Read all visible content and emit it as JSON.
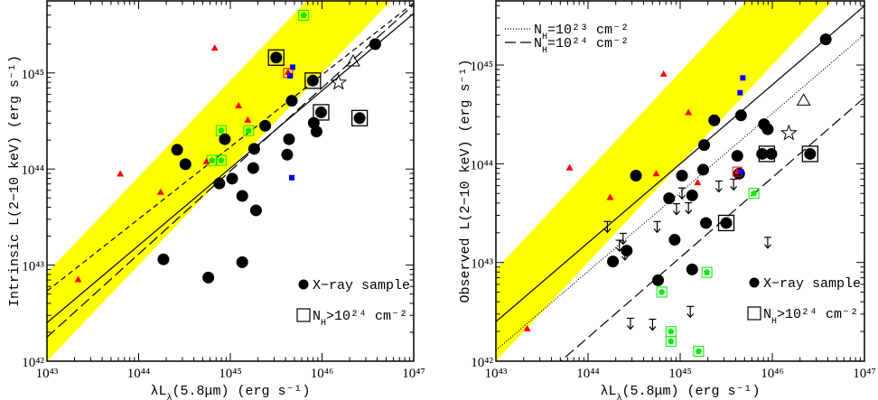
{
  "chart_data": [
    {
      "type": "scatter",
      "panel": "left",
      "xscale": "log",
      "yscale": "log",
      "xlim_log10": [
        43,
        47
      ],
      "ylim_log10": [
        42,
        45.75
      ],
      "xticks": [
        "10⁴³",
        "10⁴⁴",
        "10⁴⁵",
        "10⁴⁶",
        "10⁴⁷"
      ],
      "yticks": [
        "10⁴²",
        "10⁴³",
        "10⁴⁴",
        "10⁴⁵"
      ],
      "xlabel": {
        "pre": "λL",
        "sub": "λ",
        "post": "(5.8μm) (erg s⁻¹)"
      },
      "ylabel": "Intrinsic L(2−10 keV) (erg s⁻¹)",
      "band": {
        "color": "#ffff00",
        "lower": {
          "slope": 1.0,
          "intercept": -1.0
        },
        "upper": {
          "slope": 1.0,
          "intercept": -0.08
        }
      },
      "lines": [
        {
          "style": "solid",
          "slope": 0.805,
          "y_at_43": 42.4
        },
        {
          "style": "long-dash",
          "slope": 0.865,
          "y_at_43": 42.25
        },
        {
          "style": "short-dash",
          "slope": 0.75,
          "y_at_43": 42.73
        }
      ],
      "series": [
        {
          "marker": "black-circle",
          "color": "#000000",
          "points_log10": [
            [
              46.58,
              45.3
            ],
            [
              45.5,
              45.16
            ],
            [
              45.9,
              44.92
            ],
            [
              45.67,
              44.71
            ],
            [
              45.99,
              44.59
            ],
            [
              46.41,
              44.53
            ],
            [
              45.91,
              44.48
            ],
            [
              45.94,
              44.39
            ],
            [
              45.38,
              44.45
            ],
            [
              44.94,
              44.31
            ],
            [
              45.64,
              44.31
            ],
            [
              45.26,
              44.21
            ],
            [
              45.62,
              44.15
            ],
            [
              44.42,
              44.2
            ],
            [
              44.51,
              44.05
            ],
            [
              45.25,
              44.01
            ],
            [
              44.88,
              43.85
            ],
            [
              45.02,
              43.9
            ],
            [
              45.13,
              43.72
            ],
            [
              45.28,
              43.57
            ],
            [
              44.27,
              43.06
            ],
            [
              45.13,
              43.03
            ],
            [
              44.76,
              42.87
            ]
          ]
        },
        {
          "marker": "open-square",
          "color": "#000000",
          "points_log10": [
            [
              45.5,
              45.16
            ],
            [
              45.9,
              44.92
            ],
            [
              45.99,
              44.59
            ],
            [
              46.41,
              44.53
            ]
          ]
        },
        {
          "marker": "red-triangle",
          "color": "#ff0000",
          "points_log10": [
            [
              44.83,
              45.26
            ],
            [
              43.8,
              43.95
            ],
            [
              44.24,
              43.76
            ],
            [
              43.34,
              42.85
            ],
            [
              45.09,
              44.66
            ],
            [
              45.19,
              44.51
            ],
            [
              44.74,
              44.08
            ],
            [
              45.63,
              45.01
            ]
          ]
        },
        {
          "marker": "red-open-square",
          "color": "#ff0000",
          "points_log10": [
            [
              45.63,
              45.0
            ]
          ]
        },
        {
          "marker": "blue-square",
          "color": "#0000ff",
          "points_log10": [
            [
              45.68,
              45.06
            ],
            [
              45.65,
              44.97
            ],
            [
              45.67,
              43.91
            ]
          ]
        },
        {
          "marker": "green-boxed-pentagon",
          "color": "#00ee00",
          "points_log10": [
            [
              45.8,
              45.6
            ],
            [
              44.9,
              44.4
            ],
            [
              45.2,
              44.4
            ],
            [
              44.8,
              44.09
            ],
            [
              44.9,
              44.09
            ]
          ]
        },
        {
          "marker": "open-triangle",
          "color": "#000000",
          "points_log10": [
            [
              46.34,
              45.12
            ]
          ]
        },
        {
          "marker": "open-star",
          "color": "#000000",
          "points_log10": [
            [
              46.18,
              44.9
            ]
          ]
        }
      ],
      "legend": {
        "placement": "bottom-right",
        "items": [
          {
            "marker": "black-circle",
            "text": "X−ray sample"
          },
          {
            "marker": "open-square",
            "pre": "N",
            "sub": "H",
            "post": ">10²⁴ cm⁻²"
          }
        ]
      }
    },
    {
      "type": "scatter",
      "panel": "right",
      "xscale": "log",
      "yscale": "log",
      "xlim_log10": [
        43,
        47
      ],
      "ylim_log10": [
        42,
        45.65
      ],
      "xticks": [
        "10⁴³",
        "10⁴⁴",
        "10⁴⁵",
        "10⁴⁶",
        "10⁴⁷"
      ],
      "yticks": [
        "10⁴²",
        "10⁴³",
        "10⁴⁴",
        "10⁴⁵"
      ],
      "xlabel": {
        "pre": "λL",
        "sub": "λ",
        "post": "(5.8μm) (erg s⁻¹)"
      },
      "ylabel": "Observed L(2−10 keV) (erg s⁻¹)",
      "band": {
        "color": "#ffff00",
        "lower": {
          "slope": 1.0,
          "intercept": -1.0
        },
        "upper": {
          "slope": 1.0,
          "intercept": -0.07
        }
      },
      "lines": [
        {
          "style": "solid",
          "slope": 0.8,
          "y_at_43": 42.4
        },
        {
          "style": "dotted",
          "slope": 0.8,
          "y_at_43": 42.11
        },
        {
          "style": "long-dash",
          "slope": 0.81,
          "y_at_43": 41.43
        }
      ],
      "series": [
        {
          "marker": "black-circle",
          "color": "#000000",
          "points_log10": [
            [
              46.58,
              45.26
            ],
            [
              45.66,
              44.49
            ],
            [
              45.37,
              44.44
            ],
            [
              45.91,
              44.4
            ],
            [
              45.95,
              44.35
            ],
            [
              45.26,
              44.19
            ],
            [
              45.62,
              44.08
            ],
            [
              45.89,
              44.1
            ],
            [
              45.99,
              44.1
            ],
            [
              46.41,
              44.1
            ],
            [
              44.52,
              43.88
            ],
            [
              45.02,
              43.88
            ],
            [
              45.64,
              43.9
            ],
            [
              45.25,
              43.94
            ],
            [
              44.88,
              43.65
            ],
            [
              45.13,
              43.68
            ],
            [
              45.28,
              43.4
            ],
            [
              45.5,
              43.4
            ],
            [
              44.94,
              43.23
            ],
            [
              44.42,
              43.12
            ],
            [
              44.27,
              43.01
            ],
            [
              44.76,
              42.82
            ],
            [
              45.13,
              42.93
            ]
          ]
        },
        {
          "marker": "open-square",
          "color": "#000000",
          "points_log10": [
            [
              45.94,
              44.1
            ],
            [
              46.41,
              44.1
            ],
            [
              45.5,
              43.4
            ]
          ]
        },
        {
          "marker": "red-triangle",
          "color": "#ff0000",
          "points_log10": [
            [
              44.82,
              44.91
            ],
            [
              45.09,
              44.52
            ],
            [
              43.8,
              43.96
            ],
            [
              44.24,
              43.66
            ],
            [
              44.74,
              43.9
            ],
            [
              45.19,
              43.81
            ],
            [
              43.34,
              42.33
            ],
            [
              45.62,
              43.92
            ]
          ]
        },
        {
          "marker": "red-open-square",
          "color": "#ff0000",
          "points_log10": [
            [
              45.62,
              43.92
            ]
          ]
        },
        {
          "marker": "blue-square",
          "color": "#0000ff",
          "points_log10": [
            [
              45.68,
              44.87
            ],
            [
              45.65,
              44.72
            ],
            [
              45.66,
              43.92
            ]
          ]
        },
        {
          "marker": "green-boxed-pentagon",
          "color": "#00ee00",
          "points_log10": [
            [
              45.8,
              43.7
            ],
            [
              45.29,
              42.9
            ],
            [
              44.8,
              42.7
            ],
            [
              44.9,
              42.3
            ],
            [
              44.9,
              42.2
            ],
            [
              45.2,
              42.1
            ]
          ]
        },
        {
          "marker": "upper-limit-arrow",
          "color": "#000000",
          "points_log10": [
            [
              44.21,
              43.36
            ],
            [
              44.34,
              43.17
            ],
            [
              44.4,
              43.08
            ],
            [
              44.38,
              43.24
            ],
            [
              44.75,
              43.36
            ],
            [
              44.96,
              43.54
            ],
            [
              45.02,
              43.7
            ],
            [
              45.09,
              43.55
            ],
            [
              45.42,
              43.77
            ],
            [
              45.58,
              43.79
            ],
            [
              45.95,
              43.2
            ],
            [
              45.11,
              42.5
            ],
            [
              44.46,
              42.38
            ],
            [
              44.7,
              42.37
            ]
          ]
        },
        {
          "marker": "open-triangle",
          "color": "#000000",
          "points_log10": [
            [
              46.34,
              44.64
            ]
          ]
        },
        {
          "marker": "open-star",
          "color": "#000000",
          "points_log10": [
            [
              46.18,
              44.31
            ]
          ]
        }
      ],
      "legend": {
        "placement": "bottom-right",
        "items": [
          {
            "marker": "black-circle",
            "text": "X−ray sample"
          },
          {
            "marker": "open-square",
            "pre": "N",
            "sub": "H",
            "post": ">10²⁴ cm⁻²"
          }
        ]
      },
      "line_legend": {
        "placement": "top-left",
        "items": [
          {
            "style": "dotted",
            "pre": "N",
            "sub": "H",
            "post": "=10²³ cm⁻²"
          },
          {
            "style": "long-dash",
            "pre": "N",
            "sub": "H",
            "post": "=10²⁴ cm⁻²"
          }
        ]
      }
    }
  ]
}
